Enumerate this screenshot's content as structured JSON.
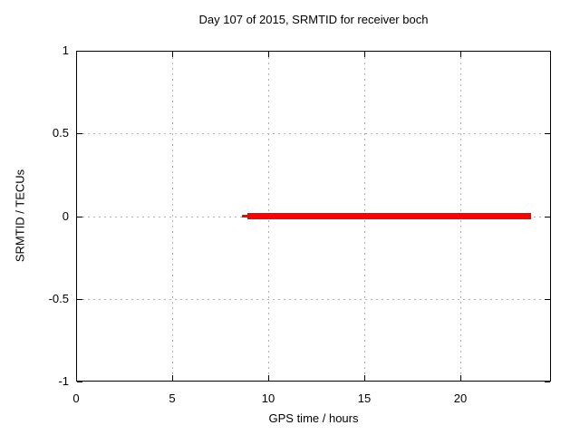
{
  "figure": {
    "background": "#ffffff"
  },
  "chart_data": {
    "type": "line",
    "title": "Day 107 of 2015, SRMTID for receiver boch",
    "xlabel": "GPS time / hours",
    "ylabel": "SRMTID / TECUs",
    "xlim": [
      0,
      24.7
    ],
    "ylim": [
      -1,
      1
    ],
    "xticks": [
      {
        "v": 0,
        "label": "0"
      },
      {
        "v": 5,
        "label": "5"
      },
      {
        "v": 10,
        "label": "10"
      },
      {
        "v": 15,
        "label": "15"
      },
      {
        "v": 20,
        "label": "20"
      }
    ],
    "yticks": [
      {
        "v": 1,
        "label": "1"
      },
      {
        "v": 0.5,
        "label": "0.5"
      },
      {
        "v": 0,
        "label": "0"
      },
      {
        "v": -0.5,
        "label": "-0.5"
      },
      {
        "v": -1,
        "label": "-1"
      }
    ],
    "grid": true,
    "legend": "none",
    "series": [
      {
        "name": "SRMTID",
        "color": "#ff0000",
        "segments": [
          {
            "x_from": 8.62,
            "x_to": 8.95,
            "y": 0,
            "thickness_px": 3
          },
          {
            "x_from": 8.9,
            "x_to": 23.65,
            "y": 0,
            "thickness_px": 7
          }
        ]
      }
    ],
    "colors": {
      "line": "#ff0000",
      "grid": "#b0b0b0",
      "border": "#000000",
      "text": "#000000",
      "background": "#ffffff"
    }
  }
}
